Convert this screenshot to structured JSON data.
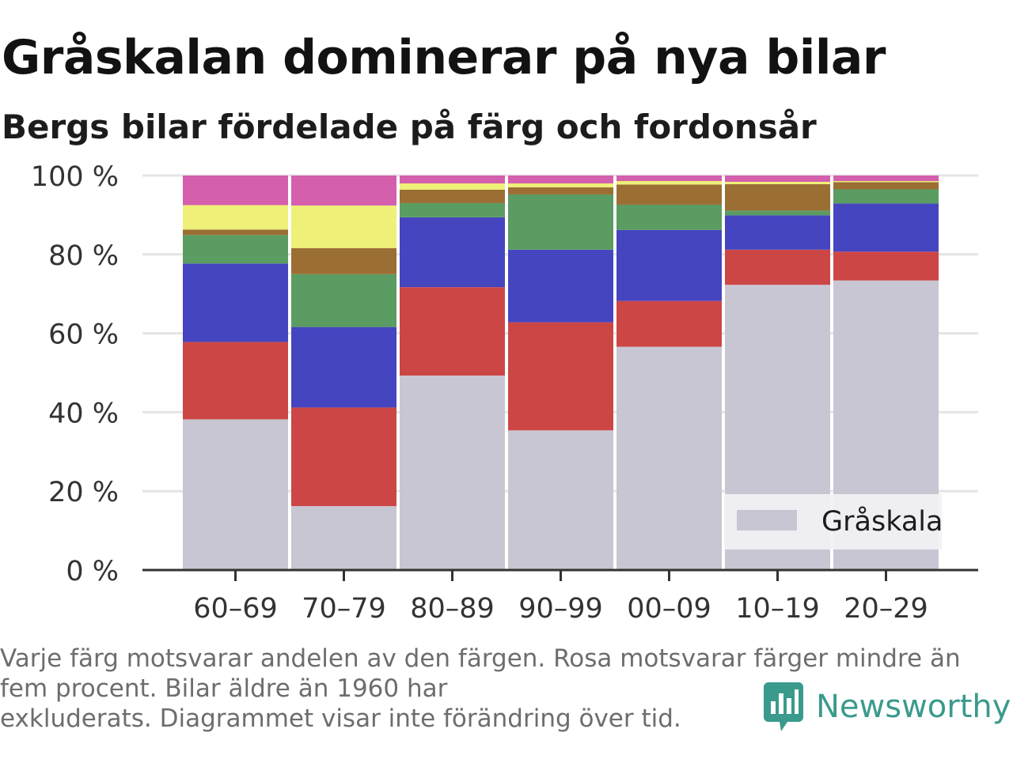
{
  "header": {
    "title": "Gråskalan dominerar på nya bilar",
    "subtitle": "Bergs bilar fördelade på färg och fordonsår"
  },
  "chart_data": {
    "type": "bar",
    "stacked": true,
    "categories": [
      "60–69",
      "70–79",
      "80–89",
      "90–99",
      "00–09",
      "10–19",
      "20–29"
    ],
    "y_ticks": [
      "0 %",
      "20 %",
      "40 %",
      "60 %",
      "80 %",
      "100 %"
    ],
    "ylim": [
      0,
      100
    ],
    "grid": true,
    "legend_position": "bottom-right",
    "series": [
      {
        "name": "Gråskala",
        "color": "#c8c6d2",
        "values": [
          38.2,
          16.2,
          49.3,
          35.4,
          56.6,
          72.3,
          73.4
        ]
      },
      {
        "color": "#cd4646",
        "values": [
          19.6,
          25.0,
          22.4,
          27.4,
          11.6,
          8.9,
          7.3
        ]
      },
      {
        "color": "#4545c0",
        "values": [
          19.9,
          20.4,
          17.7,
          18.4,
          18.0,
          8.7,
          12.2
        ]
      },
      {
        "color": "#5a9c62",
        "values": [
          7.2,
          13.4,
          3.6,
          14.0,
          6.4,
          1.2,
          3.6
        ]
      },
      {
        "color": "#9b6e33",
        "values": [
          1.4,
          6.6,
          3.4,
          1.8,
          5.1,
          6.7,
          1.8
        ]
      },
      {
        "color": "#eef078",
        "values": [
          6.2,
          10.8,
          1.6,
          1.0,
          0.9,
          0.6,
          0.3
        ]
      },
      {
        "color": "#d45fac",
        "values": [
          7.5,
          7.6,
          2.0,
          2.0,
          1.4,
          1.6,
          1.4
        ]
      }
    ]
  },
  "footnote": {
    "lines": [
      "Varje färg motsvarar andelen av den färgen. Rosa motsvarar färger mindre än",
      "fem procent. Bilar äldre än 1960 har",
      "exkluderats. Diagrammet visar inte förändring över tid."
    ]
  },
  "brand": {
    "name": "Newsworthy",
    "icon": "newsworthy-logo-icon",
    "color": "#3a9a8c"
  }
}
